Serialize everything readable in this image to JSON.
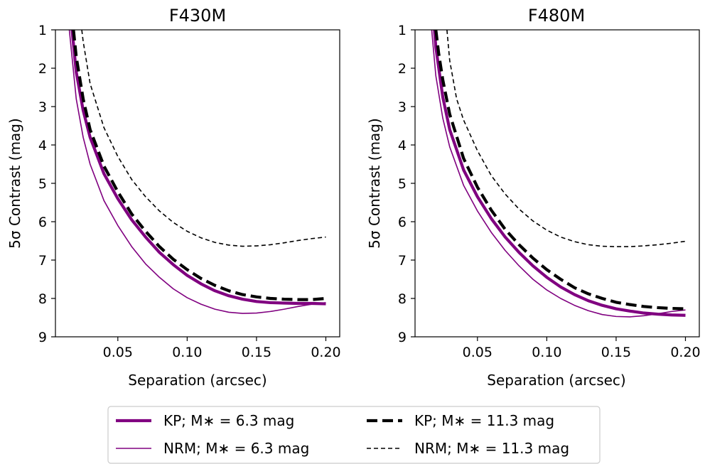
{
  "chart_data": [
    {
      "type": "line",
      "title": "F430M",
      "xlabel": "Separation (arcsec)",
      "ylabel": "5σ Contrast (mag)",
      "xlim": [
        0.005,
        0.21
      ],
      "ylim": [
        1,
        9
      ],
      "y_inverted": true,
      "xticks": [
        "0.05",
        "0.10",
        "0.15",
        "0.20"
      ],
      "xtick_values": [
        0.05,
        0.1,
        0.15,
        0.2
      ],
      "yticks": [
        "1",
        "2",
        "3",
        "4",
        "5",
        "6",
        "7",
        "8",
        "9"
      ],
      "ytick_values": [
        1,
        2,
        3,
        4,
        5,
        6,
        7,
        8,
        9
      ],
      "series": [
        {
          "name": "KP; M* = 6.3 mag",
          "x": [
            0.017,
            0.02,
            0.025,
            0.03,
            0.04,
            0.05,
            0.06,
            0.07,
            0.08,
            0.09,
            0.1,
            0.11,
            0.12,
            0.13,
            0.14,
            0.15,
            0.16,
            0.17,
            0.18,
            0.19,
            0.2
          ],
          "y": [
            1.0,
            2.1,
            3.1,
            3.8,
            4.75,
            5.4,
            5.95,
            6.4,
            6.8,
            7.12,
            7.4,
            7.62,
            7.8,
            7.93,
            8.02,
            8.08,
            8.11,
            8.12,
            8.13,
            8.13,
            8.14
          ]
        },
        {
          "name": "NRM; M* = 6.3 mag",
          "x": [
            0.015,
            0.02,
            0.025,
            0.03,
            0.04,
            0.05,
            0.06,
            0.07,
            0.08,
            0.09,
            0.1,
            0.11,
            0.12,
            0.13,
            0.14,
            0.15,
            0.16,
            0.17,
            0.18,
            0.19,
            0.2
          ],
          "y": [
            1.0,
            2.8,
            3.8,
            4.5,
            5.45,
            6.1,
            6.65,
            7.1,
            7.45,
            7.75,
            7.98,
            8.15,
            8.28,
            8.36,
            8.39,
            8.38,
            8.34,
            8.28,
            8.21,
            8.15,
            8.11
          ]
        },
        {
          "name": "KP; M* = 11.3 mag",
          "x": [
            0.018,
            0.02,
            0.025,
            0.03,
            0.04,
            0.05,
            0.06,
            0.07,
            0.08,
            0.09,
            0.1,
            0.11,
            0.12,
            0.13,
            0.14,
            0.15,
            0.16,
            0.17,
            0.18,
            0.19,
            0.2
          ],
          "y": [
            1.0,
            1.7,
            2.8,
            3.6,
            4.55,
            5.22,
            5.8,
            6.25,
            6.65,
            6.98,
            7.25,
            7.48,
            7.66,
            7.8,
            7.9,
            7.96,
            8.0,
            8.02,
            8.03,
            8.03,
            8.0
          ]
        },
        {
          "name": "NRM; M* = 11.3 mag",
          "x": [
            0.024,
            0.025,
            0.03,
            0.04,
            0.05,
            0.06,
            0.07,
            0.08,
            0.09,
            0.1,
            0.11,
            0.12,
            0.13,
            0.14,
            0.15,
            0.16,
            0.17,
            0.18,
            0.19,
            0.2
          ],
          "y": [
            1.0,
            1.3,
            2.4,
            3.55,
            4.3,
            4.9,
            5.35,
            5.72,
            6.02,
            6.25,
            6.42,
            6.54,
            6.61,
            6.64,
            6.63,
            6.6,
            6.55,
            6.49,
            6.44,
            6.4
          ]
        }
      ]
    },
    {
      "type": "line",
      "title": "F480M",
      "xlabel": "Separation (arcsec)",
      "ylabel": "5σ Contrast (mag)",
      "xlim": [
        0.005,
        0.21
      ],
      "ylim": [
        1,
        9
      ],
      "y_inverted": true,
      "xticks": [
        "0.05",
        "0.10",
        "0.15",
        "0.20"
      ],
      "xtick_values": [
        0.05,
        0.1,
        0.15,
        0.2
      ],
      "yticks": [
        "1",
        "2",
        "3",
        "4",
        "5",
        "6",
        "7",
        "8",
        "9"
      ],
      "ytick_values": [
        1,
        2,
        3,
        4,
        5,
        6,
        7,
        8,
        9
      ],
      "series": [
        {
          "name": "KP; M* = 6.3 mag",
          "x": [
            0.019,
            0.02,
            0.025,
            0.03,
            0.04,
            0.05,
            0.06,
            0.07,
            0.08,
            0.09,
            0.1,
            0.11,
            0.12,
            0.13,
            0.14,
            0.15,
            0.16,
            0.17,
            0.18,
            0.19,
            0.2
          ],
          "y": [
            1.0,
            1.45,
            2.75,
            3.6,
            4.65,
            5.35,
            5.92,
            6.4,
            6.8,
            7.15,
            7.45,
            7.7,
            7.9,
            8.06,
            8.18,
            8.27,
            8.33,
            8.38,
            8.41,
            8.43,
            8.44
          ]
        },
        {
          "name": "NRM; M* = 6.3 mag",
          "x": [
            0.017,
            0.02,
            0.025,
            0.03,
            0.04,
            0.05,
            0.06,
            0.07,
            0.08,
            0.09,
            0.1,
            0.11,
            0.12,
            0.13,
            0.14,
            0.15,
            0.16,
            0.17,
            0.18,
            0.19,
            0.2
          ],
          "y": [
            1.0,
            2.2,
            3.3,
            4.05,
            5.05,
            5.72,
            6.28,
            6.75,
            7.15,
            7.5,
            7.78,
            8.0,
            8.18,
            8.32,
            8.42,
            8.47,
            8.48,
            8.45,
            8.4,
            8.34,
            8.3
          ]
        },
        {
          "name": "KP; M* = 11.3 mag",
          "x": [
            0.02,
            0.022,
            0.025,
            0.03,
            0.04,
            0.05,
            0.06,
            0.07,
            0.08,
            0.09,
            0.1,
            0.11,
            0.12,
            0.13,
            0.14,
            0.15,
            0.16,
            0.17,
            0.18,
            0.19,
            0.2
          ],
          "y": [
            1.0,
            1.6,
            2.3,
            3.2,
            4.35,
            5.1,
            5.7,
            6.2,
            6.6,
            6.95,
            7.25,
            7.5,
            7.72,
            7.88,
            8.0,
            8.1,
            8.16,
            8.21,
            8.24,
            8.26,
            8.27
          ]
        },
        {
          "name": "NRM; M* = 11.3 mag",
          "x": [
            0.028,
            0.03,
            0.035,
            0.04,
            0.05,
            0.06,
            0.07,
            0.08,
            0.09,
            0.1,
            0.11,
            0.12,
            0.13,
            0.14,
            0.15,
            0.16,
            0.17,
            0.18,
            0.19,
            0.2
          ],
          "y": [
            1.0,
            1.8,
            2.8,
            3.35,
            4.15,
            4.8,
            5.28,
            5.67,
            5.98,
            6.22,
            6.4,
            6.52,
            6.6,
            6.64,
            6.65,
            6.65,
            6.63,
            6.6,
            6.56,
            6.51
          ]
        }
      ]
    }
  ],
  "series_styles": [
    {
      "color": "#800080",
      "width": 4.2,
      "dash": ""
    },
    {
      "color": "#800080",
      "width": 1.6,
      "dash": ""
    },
    {
      "color": "#000000",
      "width": 4.2,
      "dash": "15,7"
    },
    {
      "color": "#000000",
      "width": 1.6,
      "dash": "6,4"
    }
  ],
  "legend": {
    "items": [
      {
        "label": "KP; M∗ = 6.3 mag"
      },
      {
        "label": "NRM; M∗ = 6.3 mag"
      },
      {
        "label": "KP; M∗ = 11.3 mag"
      },
      {
        "label": "NRM; M∗ = 11.3 mag"
      }
    ]
  }
}
